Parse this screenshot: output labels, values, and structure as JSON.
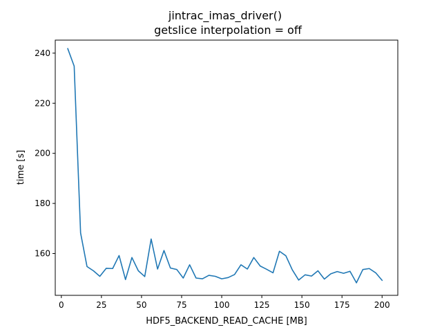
{
  "chart_data": {
    "type": "line",
    "title": "jintrac_imas_driver()",
    "subtitle": "getslice interpolation = off",
    "xlabel": "HDF5_BACKEND_READ_CACHE [MB]",
    "ylabel": "time [s]",
    "xlim": [
      -3.8,
      209.8
    ],
    "ylim": [
      143.3,
      245.2
    ],
    "xticks": [
      0,
      25,
      50,
      75,
      100,
      125,
      150,
      175,
      200
    ],
    "yticks": [
      160,
      180,
      200,
      220,
      240
    ],
    "grid": false,
    "line_color": "#1f77b4",
    "series": [
      {
        "x": [
          4,
          8,
          12,
          16,
          20,
          24,
          28,
          32,
          36,
          40,
          44,
          48,
          52,
          56,
          60,
          64,
          68,
          72,
          76,
          80,
          84,
          88,
          92,
          96,
          100,
          104,
          108,
          112,
          116,
          120,
          124,
          128,
          132,
          136,
          140,
          144,
          148,
          152,
          156,
          160,
          164,
          168,
          172,
          176,
          180,
          184,
          188,
          192,
          196,
          200
        ],
        "y": [
          241.8,
          234.8,
          168.2,
          154.8,
          153.1,
          150.9,
          154.1,
          154.0,
          159.2,
          149.6,
          158.4,
          153.1,
          150.8,
          165.8,
          153.8,
          161.2,
          154.2,
          153.6,
          150.2,
          155.5,
          150.2,
          149.9,
          151.3,
          150.9,
          149.9,
          150.4,
          151.6,
          155.5,
          153.8,
          158.4,
          155.0,
          153.7,
          152.3,
          160.9,
          159.1,
          153.5,
          149.4,
          151.5,
          151.0,
          153.1,
          149.8,
          151.9,
          152.8,
          152.1,
          152.9,
          148.3,
          153.6,
          154.0,
          152.3,
          149.3
        ]
      }
    ]
  }
}
